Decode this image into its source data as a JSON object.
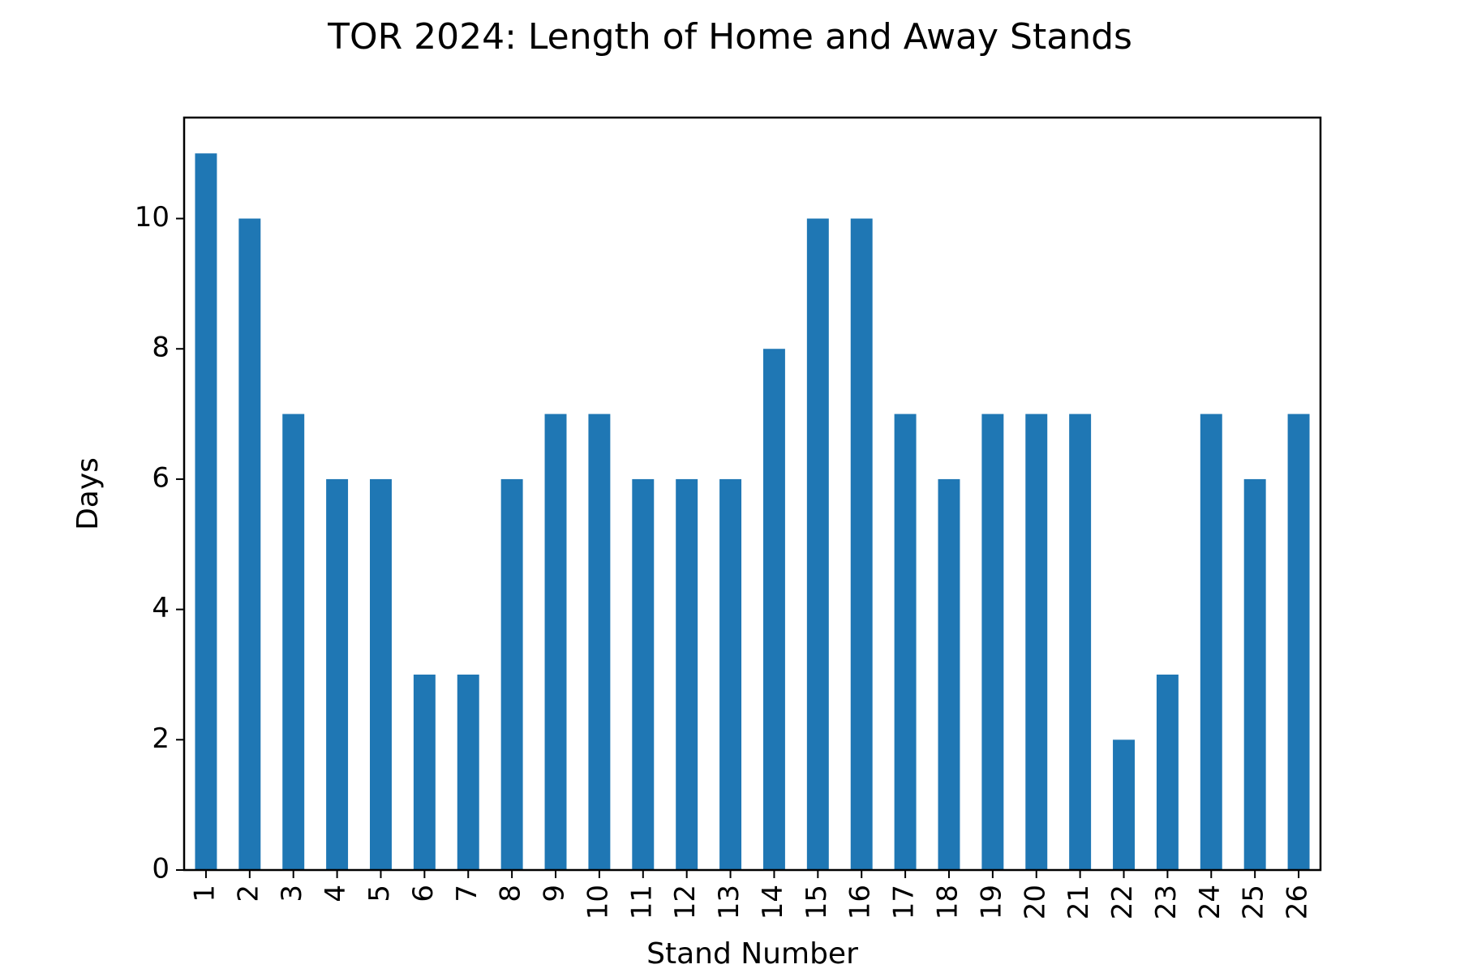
{
  "chart_data": {
    "type": "bar",
    "title": "TOR 2024: Length of Home and Away Stands",
    "xlabel": "Stand Number",
    "ylabel": "Days",
    "categories": [
      "1",
      "2",
      "3",
      "4",
      "5",
      "6",
      "7",
      "8",
      "9",
      "10",
      "11",
      "12",
      "13",
      "14",
      "15",
      "16",
      "17",
      "18",
      "19",
      "20",
      "21",
      "22",
      "23",
      "24",
      "25",
      "26"
    ],
    "values": [
      11,
      10,
      7,
      6,
      6,
      3,
      3,
      6,
      7,
      7,
      6,
      6,
      6,
      8,
      10,
      10,
      7,
      6,
      7,
      7,
      7,
      2,
      3,
      7,
      6,
      7
    ],
    "ylim": [
      0,
      11.55
    ],
    "yticks": [
      0,
      2,
      4,
      6,
      8,
      10
    ],
    "grid": false,
    "legend": "none",
    "bar_color": "#1f77b4"
  }
}
